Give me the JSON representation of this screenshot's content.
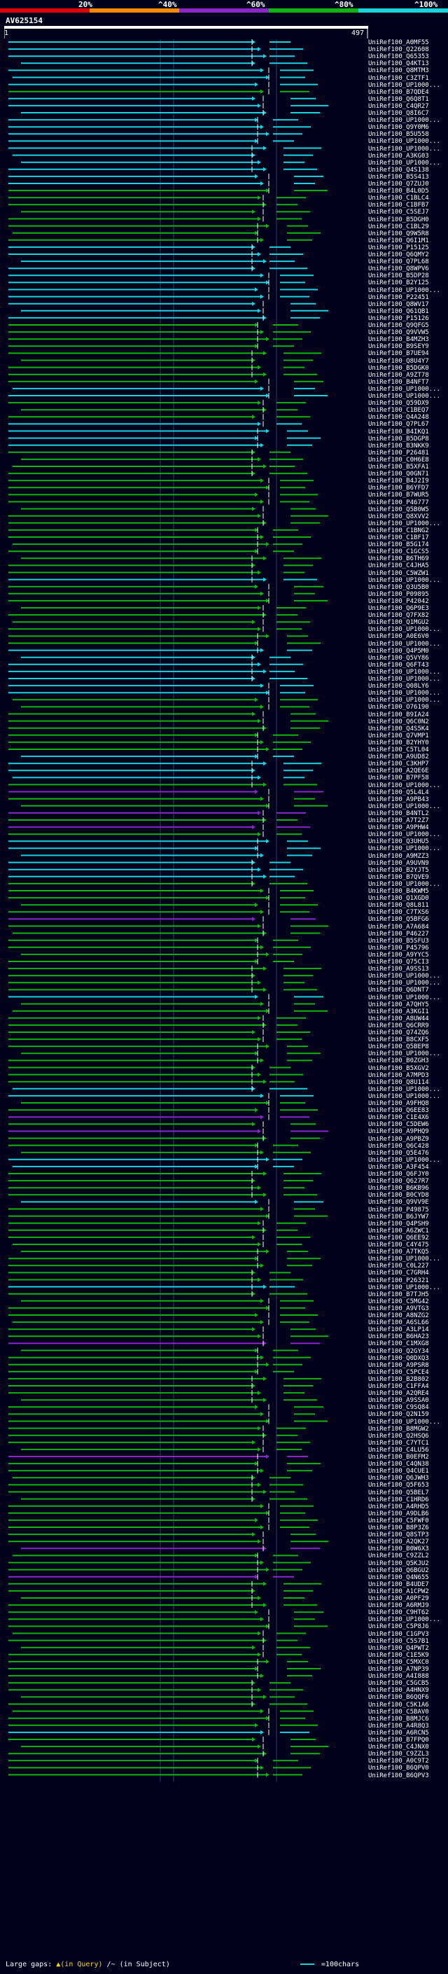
{
  "header": {
    "percent_labels": [
      "20%",
      "^40%",
      "^60%",
      "^80%",
      "^100%"
    ],
    "bar_colors": [
      "#e00000",
      "#ff8a00",
      "#8a27c8",
      "#12b312",
      "#19d3e0"
    ]
  },
  "query": {
    "id": "AV625154",
    "start": "1",
    "end": "497"
  },
  "colors": {
    "high": "#19d3e0",
    "mid": "#12b312",
    "low": "#8a27c8",
    "marker": "#ffffff"
  },
  "hits": [
    {
      "label": "UniRef100_A0MF55",
      "cls": "high"
    },
    {
      "label": "UniRef100_Q22608",
      "cls": "high"
    },
    {
      "label": "UniRef100_Q65353",
      "cls": "high"
    },
    {
      "label": "UniRef100_Q4KT13",
      "cls": "high"
    },
    {
      "label": "UniRef100_Q8MTM3",
      "cls": "high"
    },
    {
      "label": "UniRef100_C3ZTF1",
      "cls": "high"
    },
    {
      "label": "UniRef100_UP1000...",
      "cls": "high"
    },
    {
      "label": "UniRef100_B7QDE4",
      "cls": "mid"
    },
    {
      "label": "UniRef100_Q6Q8T1",
      "cls": "high"
    },
    {
      "label": "UniRef100_C4QR27",
      "cls": "high"
    },
    {
      "label": "UniRef100_Q8I6C7",
      "cls": "high"
    },
    {
      "label": "UniRef100_UP1000...",
      "cls": "high"
    },
    {
      "label": "UniRef100_Q9Y0M6",
      "cls": "high"
    },
    {
      "label": "UniRef100_B5U558",
      "cls": "high"
    },
    {
      "label": "UniRef100_UP1000...",
      "cls": "high"
    },
    {
      "label": "UniRef100_UP1000...",
      "cls": "high"
    },
    {
      "label": "UniRef100_A3KG03",
      "cls": "high"
    },
    {
      "label": "UniRef100_UP1000...",
      "cls": "high"
    },
    {
      "label": "UniRef100_Q4S138",
      "cls": "high"
    },
    {
      "label": "UniRef100_B5S413",
      "cls": "high"
    },
    {
      "label": "UniRef100_Q7ZUJ0",
      "cls": "high"
    },
    {
      "label": "UniRef100_B4L0D5",
      "cls": "mid"
    },
    {
      "label": "UniRef100_C1BLC4",
      "cls": "mid"
    },
    {
      "label": "UniRef100_C1BFB7",
      "cls": "mid"
    },
    {
      "label": "UniRef100_C5SEJ7",
      "cls": "mid"
    },
    {
      "label": "UniRef100_B5DGH0",
      "cls": "mid"
    },
    {
      "label": "UniRef100_C1BL29",
      "cls": "mid"
    },
    {
      "label": "UniRef100_Q9W5R8",
      "cls": "mid"
    },
    {
      "label": "UniRef100_Q6I1M1",
      "cls": "mid"
    },
    {
      "label": "UniRef100_P15125",
      "cls": "high"
    },
    {
      "label": "UniRef100_Q6QMY2",
      "cls": "high"
    },
    {
      "label": "UniRef100_Q7PL68",
      "cls": "high"
    },
    {
      "label": "UniRef100_Q8WPV6",
      "cls": "high"
    },
    {
      "label": "UniRef100_B5DP28",
      "cls": "high"
    },
    {
      "label": "UniRef100_B2Y125",
      "cls": "high"
    },
    {
      "label": "UniRef100_UP1000...",
      "cls": "high"
    },
    {
      "label": "UniRef100_P22451",
      "cls": "high"
    },
    {
      "label": "UniRef100_Q8WV17",
      "cls": "high"
    },
    {
      "label": "UniRef100_Q61QB1",
      "cls": "high"
    },
    {
      "label": "UniRef100_P15126",
      "cls": "high"
    },
    {
      "label": "UniRef100_Q9QFG5",
      "cls": "mid"
    },
    {
      "label": "UniRef100_Q9VVW5",
      "cls": "mid"
    },
    {
      "label": "UniRef100_B4MZH3",
      "cls": "mid"
    },
    {
      "label": "UniRef100_B9SEY9",
      "cls": "mid"
    },
    {
      "label": "UniRef100_B7UE94",
      "cls": "mid"
    },
    {
      "label": "UniRef100_Q8U4Y7",
      "cls": "mid"
    },
    {
      "label": "UniRef100_B5DGK0",
      "cls": "mid"
    },
    {
      "label": "UniRef100_A9ZT78",
      "cls": "mid"
    },
    {
      "label": "UniRef100_B4NFT7",
      "cls": "mid"
    },
    {
      "label": "UniRef100_UP1000...",
      "cls": "high"
    },
    {
      "label": "UniRef100_UP1000...",
      "cls": "high"
    },
    {
      "label": "UniRef100_Q59DX9",
      "cls": "mid"
    },
    {
      "label": "UniRef100_C1BEQ7",
      "cls": "mid"
    },
    {
      "label": "UniRef100_Q4A248",
      "cls": "mid"
    },
    {
      "label": "UniRef100_Q7PL67",
      "cls": "high"
    },
    {
      "label": "UniRef100_B4IKQ1",
      "cls": "high"
    },
    {
      "label": "UniRef100_B5DGP8",
      "cls": "high"
    },
    {
      "label": "UniRef100_B3NKK9",
      "cls": "high"
    },
    {
      "label": "UniRef100_P26481",
      "cls": "mid"
    },
    {
      "label": "UniRef100_C0H6E8",
      "cls": "mid"
    },
    {
      "label": "UniRef100_B5XFA1",
      "cls": "mid"
    },
    {
      "label": "UniRef100_Q0GN71",
      "cls": "mid"
    },
    {
      "label": "UniRef100_B4J2I9",
      "cls": "mid"
    },
    {
      "label": "UniRef100_B6YFD7",
      "cls": "mid"
    },
    {
      "label": "UniRef100_B7WUR5",
      "cls": "mid"
    },
    {
      "label": "UniRef100_P46777",
      "cls": "mid"
    },
    {
      "label": "UniRef100_Q5B0W5",
      "cls": "mid"
    },
    {
      "label": "UniRef100_Q8XVV2",
      "cls": "mid"
    },
    {
      "label": "UniRef100_UP1000...",
      "cls": "mid"
    },
    {
      "label": "UniRef100_C1BNG2",
      "cls": "mid"
    },
    {
      "label": "UniRef100_C1BF17",
      "cls": "mid"
    },
    {
      "label": "UniRef100_B5G174",
      "cls": "mid"
    },
    {
      "label": "UniRef100_C1GCS5",
      "cls": "mid"
    },
    {
      "label": "UniRef100_B6TH69",
      "cls": "mid"
    },
    {
      "label": "UniRef100_C4JHA5",
      "cls": "mid"
    },
    {
      "label": "UniRef100_C5WZW1",
      "cls": "mid"
    },
    {
      "label": "UniRef100_UP1000...",
      "cls": "high"
    },
    {
      "label": "UniRef100_Q3U5B0",
      "cls": "mid"
    },
    {
      "label": "UniRef100_P09895",
      "cls": "mid"
    },
    {
      "label": "UniRef100_P42042",
      "cls": "mid"
    },
    {
      "label": "UniRef100_Q6P9E3",
      "cls": "mid"
    },
    {
      "label": "UniRef100_Q7FX82",
      "cls": "mid"
    },
    {
      "label": "UniRef100_Q1MGU2",
      "cls": "mid"
    },
    {
      "label": "UniRef100_UP1000...",
      "cls": "mid"
    },
    {
      "label": "UniRef100_A0E6V0",
      "cls": "mid"
    },
    {
      "label": "UniRef100_UP1000...",
      "cls": "mid"
    },
    {
      "label": "UniRef100_Q4P5M0",
      "cls": "high"
    },
    {
      "label": "UniRef100_Q5VY86",
      "cls": "high"
    },
    {
      "label": "UniRef100_Q6FT43",
      "cls": "high"
    },
    {
      "label": "UniRef100_UP1000...",
      "cls": "high"
    },
    {
      "label": "UniRef100_UP1000...",
      "cls": "high"
    },
    {
      "label": "UniRef100_Q08LY6",
      "cls": "high"
    },
    {
      "label": "UniRef100_UP1000...",
      "cls": "high"
    },
    {
      "label": "UniRef100_UP1000...",
      "cls": "mid"
    },
    {
      "label": "UniRef100_O76190",
      "cls": "mid"
    },
    {
      "label": "UniRef100_B9IA24",
      "cls": "mid"
    },
    {
      "label": "UniRef100_Q6C0N2",
      "cls": "mid"
    },
    {
      "label": "UniRef100_Q4S5K4",
      "cls": "mid"
    },
    {
      "label": "UniRef100_Q7VMP1",
      "cls": "mid"
    },
    {
      "label": "UniRef100_B2YHY0",
      "cls": "mid"
    },
    {
      "label": "UniRef100_C5TL04",
      "cls": "mid"
    },
    {
      "label": "UniRef100_A9UD82",
      "cls": "high"
    },
    {
      "label": "UniRef100_C3KHP7",
      "cls": "high"
    },
    {
      "label": "UniRef100_A2QE6E",
      "cls": "high"
    },
    {
      "label": "UniRef100_B7PF58",
      "cls": "high"
    },
    {
      "label": "UniRef100_UP1000...",
      "cls": "mid"
    },
    {
      "label": "UniRef100_Q5L4L4",
      "cls": "low"
    },
    {
      "label": "UniRef100_A9PB43",
      "cls": "mid"
    },
    {
      "label": "UniRef100_UP1000...",
      "cls": "mid"
    },
    {
      "label": "UniRef100_B4NTL2",
      "cls": "low"
    },
    {
      "label": "UniRef100_A7T2Z7",
      "cls": "mid"
    },
    {
      "label": "UniRef100_A9PHW4",
      "cls": "low"
    },
    {
      "label": "UniRef100_UP1000...",
      "cls": "mid"
    },
    {
      "label": "UniRef100_Q3UHU5",
      "cls": "high"
    },
    {
      "label": "UniRef100_UP1000...",
      "cls": "high"
    },
    {
      "label": "UniRef100_A9MZZ3",
      "cls": "high"
    },
    {
      "label": "UniRef100_A9UVN9",
      "cls": "high"
    },
    {
      "label": "UniRef100_B2YJT5",
      "cls": "high"
    },
    {
      "label": "UniRef100_B7QVE9",
      "cls": "high"
    },
    {
      "label": "UniRef100_UP1000...",
      "cls": "mid"
    },
    {
      "label": "UniRef100_B4KWM5",
      "cls": "mid"
    },
    {
      "label": "UniRef100_Q1XGD0",
      "cls": "mid"
    },
    {
      "label": "UniRef100_Q8L811",
      "cls": "mid"
    },
    {
      "label": "UniRef100_C7TXS6",
      "cls": "mid"
    },
    {
      "label": "UniRef100_Q5BFG6",
      "cls": "low"
    },
    {
      "label": "UniRef100_A7A684",
      "cls": "mid"
    },
    {
      "label": "UniRef100_P46227",
      "cls": "mid"
    },
    {
      "label": "UniRef100_B5SFU3",
      "cls": "mid"
    },
    {
      "label": "UniRef100_P45796",
      "cls": "mid"
    },
    {
      "label": "UniRef100_A9YYC5",
      "cls": "mid"
    },
    {
      "label": "UniRef100_Q75CI3",
      "cls": "mid"
    },
    {
      "label": "UniRef100_A9SS13",
      "cls": "mid"
    },
    {
      "label": "UniRef100_UP1000...",
      "cls": "mid"
    },
    {
      "label": "UniRef100_UP1000...",
      "cls": "mid"
    },
    {
      "label": "UniRef100_Q6DNT7",
      "cls": "mid"
    },
    {
      "label": "UniRef100_UP1000...",
      "cls": "high"
    },
    {
      "label": "UniRef100_A7QHY5",
      "cls": "mid"
    },
    {
      "label": "UniRef100_A3KGI1",
      "cls": "mid"
    },
    {
      "label": "UniRef100_A8UW44",
      "cls": "mid"
    },
    {
      "label": "UniRef100_Q6CRR9",
      "cls": "mid"
    },
    {
      "label": "UniRef100_Q74ZQ6",
      "cls": "mid"
    },
    {
      "label": "UniRef100_B8CXF5",
      "cls": "mid"
    },
    {
      "label": "UniRef100_Q5BEP8",
      "cls": "mid"
    },
    {
      "label": "UniRef100_UP1000...",
      "cls": "mid"
    },
    {
      "label": "UniRef100_B0ZGH3",
      "cls": "mid"
    },
    {
      "label": "UniRef100_B5XGV2",
      "cls": "mid"
    },
    {
      "label": "UniRef100_A7MPD3",
      "cls": "mid"
    },
    {
      "label": "UniRef100_Q8U114",
      "cls": "mid"
    },
    {
      "label": "UniRef100_UP1000...",
      "cls": "high"
    },
    {
      "label": "UniRef100_UP1000...",
      "cls": "high"
    },
    {
      "label": "UniRef100_A9FHQ8",
      "cls": "mid"
    },
    {
      "label": "UniRef100_Q6EE83",
      "cls": "mid"
    },
    {
      "label": "UniRef100_C1E4X6",
      "cls": "low"
    },
    {
      "label": "UniRef100_C5DEW6",
      "cls": "mid"
    },
    {
      "label": "UniRef100_A9PHQ9",
      "cls": "low"
    },
    {
      "label": "UniRef100_A9PBZ9",
      "cls": "mid"
    },
    {
      "label": "UniRef100_Q6C428",
      "cls": "mid"
    },
    {
      "label": "UniRef100_Q5E476",
      "cls": "mid"
    },
    {
      "label": "UniRef100_UP1000...",
      "cls": "high"
    },
    {
      "label": "UniRef100_A3F454",
      "cls": "high"
    },
    {
      "label": "UniRef100_Q6FJY0",
      "cls": "mid"
    },
    {
      "label": "UniRef100_Q627R7",
      "cls": "mid"
    },
    {
      "label": "UniRef100_B6KB96",
      "cls": "mid"
    },
    {
      "label": "UniRef100_B0CYD8",
      "cls": "mid"
    },
    {
      "label": "UniRef100_Q9VV9E",
      "cls": "high"
    },
    {
      "label": "UniRef100_P49875",
      "cls": "mid"
    },
    {
      "label": "UniRef100_B6JYW7",
      "cls": "mid"
    },
    {
      "label": "UniRef100_Q4PSH9",
      "cls": "mid"
    },
    {
      "label": "UniRef100_A6ZWC1",
      "cls": "mid"
    },
    {
      "label": "UniRef100_Q6EE92",
      "cls": "mid"
    },
    {
      "label": "UniRef100_C4Y475",
      "cls": "mid"
    },
    {
      "label": "UniRef100_A7TKQ5",
      "cls": "mid"
    },
    {
      "label": "UniRef100_UP1000...",
      "cls": "mid"
    },
    {
      "label": "UniRef100_C0L227",
      "cls": "mid"
    },
    {
      "label": "UniRef100_C7GRH4",
      "cls": "mid"
    },
    {
      "label": "UniRef100_P26321",
      "cls": "mid"
    },
    {
      "label": "UniRef100_UP1000...",
      "cls": "high"
    },
    {
      "label": "UniRef100_B7TJH5",
      "cls": "mid"
    },
    {
      "label": "UniRef100_C5MG42",
      "cls": "mid"
    },
    {
      "label": "UniRef100_A9VTG3",
      "cls": "mid"
    },
    {
      "label": "UniRef100_A8NZG2",
      "cls": "mid"
    },
    {
      "label": "UniRef100_A6SL66",
      "cls": "mid"
    },
    {
      "label": "UniRef100_A3LP14",
      "cls": "mid"
    },
    {
      "label": "UniRef100_B6HA23",
      "cls": "mid"
    },
    {
      "label": "UniRef100_C1MXG8",
      "cls": "low"
    },
    {
      "label": "UniRef100_Q2GY34",
      "cls": "mid"
    },
    {
      "label": "UniRef100_Q0DXQ3",
      "cls": "mid"
    },
    {
      "label": "UniRef100_A9PSR8",
      "cls": "mid"
    },
    {
      "label": "UniRef100_C5PCE4",
      "cls": "mid"
    },
    {
      "label": "UniRef100_B2B802",
      "cls": "mid"
    },
    {
      "label": "UniRef100_C1FFA4",
      "cls": "mid"
    },
    {
      "label": "UniRef100_A2QRE4",
      "cls": "mid"
    },
    {
      "label": "UniRef100_A9SSA0",
      "cls": "mid"
    },
    {
      "label": "UniRef100_C9SQ84",
      "cls": "mid"
    },
    {
      "label": "UniRef100_Q2N159",
      "cls": "mid"
    },
    {
      "label": "UniRef100_UP1000...",
      "cls": "mid"
    },
    {
      "label": "UniRef100_B8MGW2",
      "cls": "mid"
    },
    {
      "label": "UniRef100_Q2HSQ6",
      "cls": "mid"
    },
    {
      "label": "UniRef100_C7YTC1",
      "cls": "mid"
    },
    {
      "label": "UniRef100_C4LU56",
      "cls": "mid"
    },
    {
      "label": "UniRef100_B0EFM2",
      "cls": "low"
    },
    {
      "label": "UniRef100_C4QN38",
      "cls": "mid"
    },
    {
      "label": "UniRef100_Q4CUE1",
      "cls": "mid"
    },
    {
      "label": "UniRef100_Q6JWH3",
      "cls": "mid"
    },
    {
      "label": "UniRef100_Q5F653",
      "cls": "mid"
    },
    {
      "label": "UniRef100_Q5BEL7",
      "cls": "mid"
    },
    {
      "label": "UniRef100_C1HRD6",
      "cls": "mid"
    },
    {
      "label": "UniRef100_A4RHD5",
      "cls": "mid"
    },
    {
      "label": "UniRef100_A9DLB6",
      "cls": "mid"
    },
    {
      "label": "UniRef100_C5FWF0",
      "cls": "mid"
    },
    {
      "label": "UniRef100_B8P3Z6",
      "cls": "mid"
    },
    {
      "label": "UniRef100_Q8STP3",
      "cls": "mid"
    },
    {
      "label": "UniRef100_A2QK27",
      "cls": "mid"
    },
    {
      "label": "UniRef100_B0W6X3",
      "cls": "low"
    },
    {
      "label": "UniRef100_C9ZZL2",
      "cls": "mid"
    },
    {
      "label": "UniRef100_Q5KJU2",
      "cls": "mid"
    },
    {
      "label": "UniRef100_Q6BGU2",
      "cls": "mid"
    },
    {
      "label": "UniRef100_Q4N655",
      "cls": "low"
    },
    {
      "label": "UniRef100_B4UDE7",
      "cls": "mid"
    },
    {
      "label": "UniRef100_A1CPW2",
      "cls": "mid"
    },
    {
      "label": "UniRef100_A0PF29",
      "cls": "mid"
    },
    {
      "label": "UniRef100_A6RMJ9",
      "cls": "mid"
    },
    {
      "label": "UniRef100_C9HT62",
      "cls": "mid"
    },
    {
      "label": "UniRef100_UP1000...",
      "cls": "mid"
    },
    {
      "label": "UniRef100_C5P8J6",
      "cls": "mid"
    },
    {
      "label": "UniRef100_C1GPV3",
      "cls": "mid"
    },
    {
      "label": "UniRef100_C5S7B1",
      "cls": "mid"
    },
    {
      "label": "UniRef100_Q4PWT2",
      "cls": "mid"
    },
    {
      "label": "UniRef100_C1E5K9",
      "cls": "mid"
    },
    {
      "label": "UniRef100_C5MXC0",
      "cls": "mid"
    },
    {
      "label": "UniRef100_A7NP39",
      "cls": "mid"
    },
    {
      "label": "UniRef100_A4I888",
      "cls": "mid"
    },
    {
      "label": "UniRef100_C5GCB5",
      "cls": "mid"
    },
    {
      "label": "UniRef100_A4HNX9",
      "cls": "mid"
    },
    {
      "label": "UniRef100_B6QQF6",
      "cls": "mid"
    },
    {
      "label": "UniRef100_C5K1A6",
      "cls": "mid"
    },
    {
      "label": "UniRef100_C5BAV0",
      "cls": "mid"
    },
    {
      "label": "UniRef100_B8MJC6",
      "cls": "mid"
    },
    {
      "label": "UniRef100_A4R8Q3",
      "cls": "mid"
    },
    {
      "label": "UniRef100_A6RCN5",
      "cls": "high"
    },
    {
      "label": "UniRef100_B7FPQ0",
      "cls": "mid"
    },
    {
      "label": "UniRef100_C4JNX0",
      "cls": "mid"
    },
    {
      "label": "UniRef100_C9ZZL3",
      "cls": "mid"
    },
    {
      "label": "UniRef100_A0C9T2",
      "cls": "mid"
    },
    {
      "label": "UniRef100_B6QPV0",
      "cls": "mid"
    },
    {
      "label": "UniRef100_B6QPV3",
      "cls": "mid"
    }
  ],
  "footer": {
    "gaps_label": "Large gaps:",
    "query_gap": "▲(in Query)",
    "subject_gap": "/~ (in Subject)",
    "scale_label": "=100chars"
  }
}
